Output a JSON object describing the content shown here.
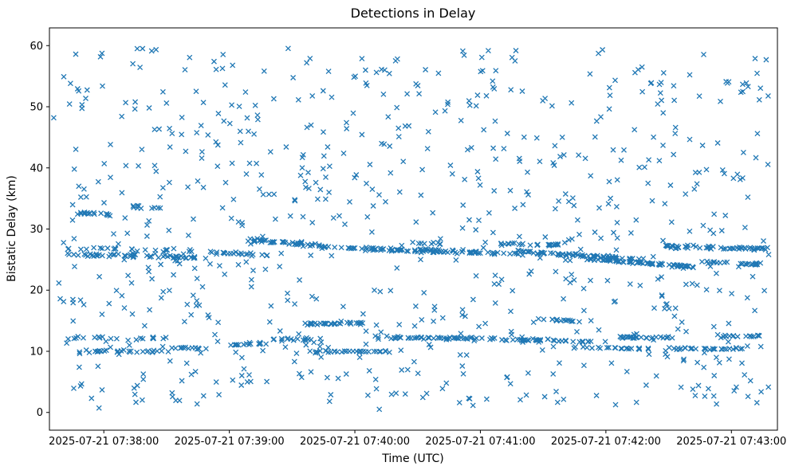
{
  "chart_data": {
    "type": "scatter",
    "title": "Detections in Delay",
    "xlabel": "Time (UTC)",
    "ylabel": "Bistatic Delay (km)",
    "marker": "x",
    "marker_color": "#1f77b4",
    "marker_size_px": 6,
    "grid": false,
    "legend": null,
    "x_axis": {
      "t_min": -26,
      "t_max": 322,
      "units": "seconds after 2025-07-21 07:38:00 UTC",
      "ticks": [
        {
          "t": 0,
          "label": "2025-07-21 07:38:00"
        },
        {
          "t": 60,
          "label": "2025-07-21 07:39:00"
        },
        {
          "t": 120,
          "label": "2025-07-21 07:40:00"
        },
        {
          "t": 180,
          "label": "2025-07-21 07:41:00"
        },
        {
          "t": 240,
          "label": "2025-07-21 07:42:00"
        },
        {
          "t": 300,
          "label": "2025-07-21 07:43:00"
        }
      ]
    },
    "y_axis": {
      "min": -2.9,
      "max": 62.9,
      "ticks": [
        0,
        10,
        20,
        30,
        40,
        50,
        60
      ]
    },
    "tracks": [
      {
        "t0": -20,
        "t1": 50,
        "y0": 25.8,
        "y1": 25.4,
        "n": 55,
        "jitter": 0.18
      },
      {
        "t0": -22,
        "t1": 45,
        "y0": 26.9,
        "y1": 26.4,
        "n": 22,
        "jitter": 0.15
      },
      {
        "t0": 50,
        "t1": 80,
        "y0": 26.2,
        "y1": 25.7,
        "n": 22,
        "jitter": 0.15
      },
      {
        "t0": 68,
        "t1": 98,
        "y0": 28.2,
        "y1": 27.5,
        "n": 35,
        "jitter": 0.15
      },
      {
        "t0": 95,
        "t1": 150,
        "y0": 27.3,
        "y1": 26.4,
        "n": 45,
        "jitter": 0.15
      },
      {
        "t0": 125,
        "t1": 170,
        "y0": 26.8,
        "y1": 26.4,
        "n": 25,
        "jitter": 0.15
      },
      {
        "t0": 148,
        "t1": 200,
        "y0": 26.4,
        "y1": 26.0,
        "n": 40,
        "jitter": 0.15
      },
      {
        "t0": 188,
        "t1": 218,
        "y0": 27.6,
        "y1": 27.4,
        "n": 25,
        "jitter": 0.12
      },
      {
        "t0": 198,
        "t1": 258,
        "y0": 26.4,
        "y1": 25.0,
        "n": 65,
        "jitter": 0.15
      },
      {
        "t0": 232,
        "t1": 282,
        "y0": 25.1,
        "y1": 23.8,
        "n": 70,
        "jitter": 0.12
      },
      {
        "t0": 268,
        "t1": 318,
        "y0": 27.1,
        "y1": 26.8,
        "n": 55,
        "jitter": 0.2
      },
      {
        "t0": 282,
        "t1": 314,
        "y0": 24.6,
        "y1": 24.3,
        "n": 22,
        "jitter": 0.15
      },
      {
        "t0": -18,
        "t1": 30,
        "y0": 12.2,
        "y1": 12.1,
        "n": 20,
        "jitter": 0.15
      },
      {
        "t0": -12,
        "t1": 28,
        "y0": 10.0,
        "y1": 10.0,
        "n": 28,
        "jitter": 0.15
      },
      {
        "t0": 28,
        "t1": 50,
        "y0": 10.6,
        "y1": 10.5,
        "n": 14,
        "jitter": 0.12
      },
      {
        "t0": 58,
        "t1": 82,
        "y0": 11.0,
        "y1": 11.4,
        "n": 14,
        "jitter": 0.15
      },
      {
        "t0": 80,
        "t1": 105,
        "y0": 11.9,
        "y1": 12.0,
        "n": 18,
        "jitter": 0.15
      },
      {
        "t0": 96,
        "t1": 124,
        "y0": 14.5,
        "y1": 14.6,
        "n": 32,
        "jitter": 0.12
      },
      {
        "t0": 98,
        "t1": 135,
        "y0": 9.9,
        "y1": 10.0,
        "n": 30,
        "jitter": 0.12
      },
      {
        "t0": 128,
        "t1": 188,
        "y0": 12.3,
        "y1": 12.1,
        "n": 48,
        "jitter": 0.15
      },
      {
        "t0": 190,
        "t1": 216,
        "y0": 11.9,
        "y1": 11.8,
        "n": 20,
        "jitter": 0.12
      },
      {
        "t0": 205,
        "t1": 228,
        "y0": 15.3,
        "y1": 14.9,
        "n": 16,
        "jitter": 0.12
      },
      {
        "t0": 214,
        "t1": 242,
        "y0": 11.7,
        "y1": 11.5,
        "n": 16,
        "jitter": 0.12
      },
      {
        "t0": 224,
        "t1": 262,
        "y0": 10.7,
        "y1": 10.4,
        "n": 22,
        "jitter": 0.12
      },
      {
        "t0": 246,
        "t1": 272,
        "y0": 12.3,
        "y1": 12.2,
        "n": 26,
        "jitter": 0.12
      },
      {
        "t0": 268,
        "t1": 308,
        "y0": 10.5,
        "y1": 10.4,
        "n": 26,
        "jitter": 0.12
      },
      {
        "t0": 294,
        "t1": 314,
        "y0": 12.5,
        "y1": 12.4,
        "n": 14,
        "jitter": 0.12
      },
      {
        "t0": -14,
        "t1": 6,
        "y0": 32.6,
        "y1": 32.3,
        "n": 18,
        "jitter": 0.15
      },
      {
        "t0": 14,
        "t1": 30,
        "y0": 33.6,
        "y1": 33.4,
        "n": 10,
        "jitter": 0.15
      },
      {
        "t0": 150,
        "t1": 162,
        "y0": 27.7,
        "y1": 27.6,
        "n": 8,
        "jitter": 0.1
      }
    ],
    "noise": {
      "n": 780,
      "t_range": [
        -24,
        318
      ],
      "y_range": [
        0.5,
        59.7
      ],
      "seed": 20250721
    }
  }
}
